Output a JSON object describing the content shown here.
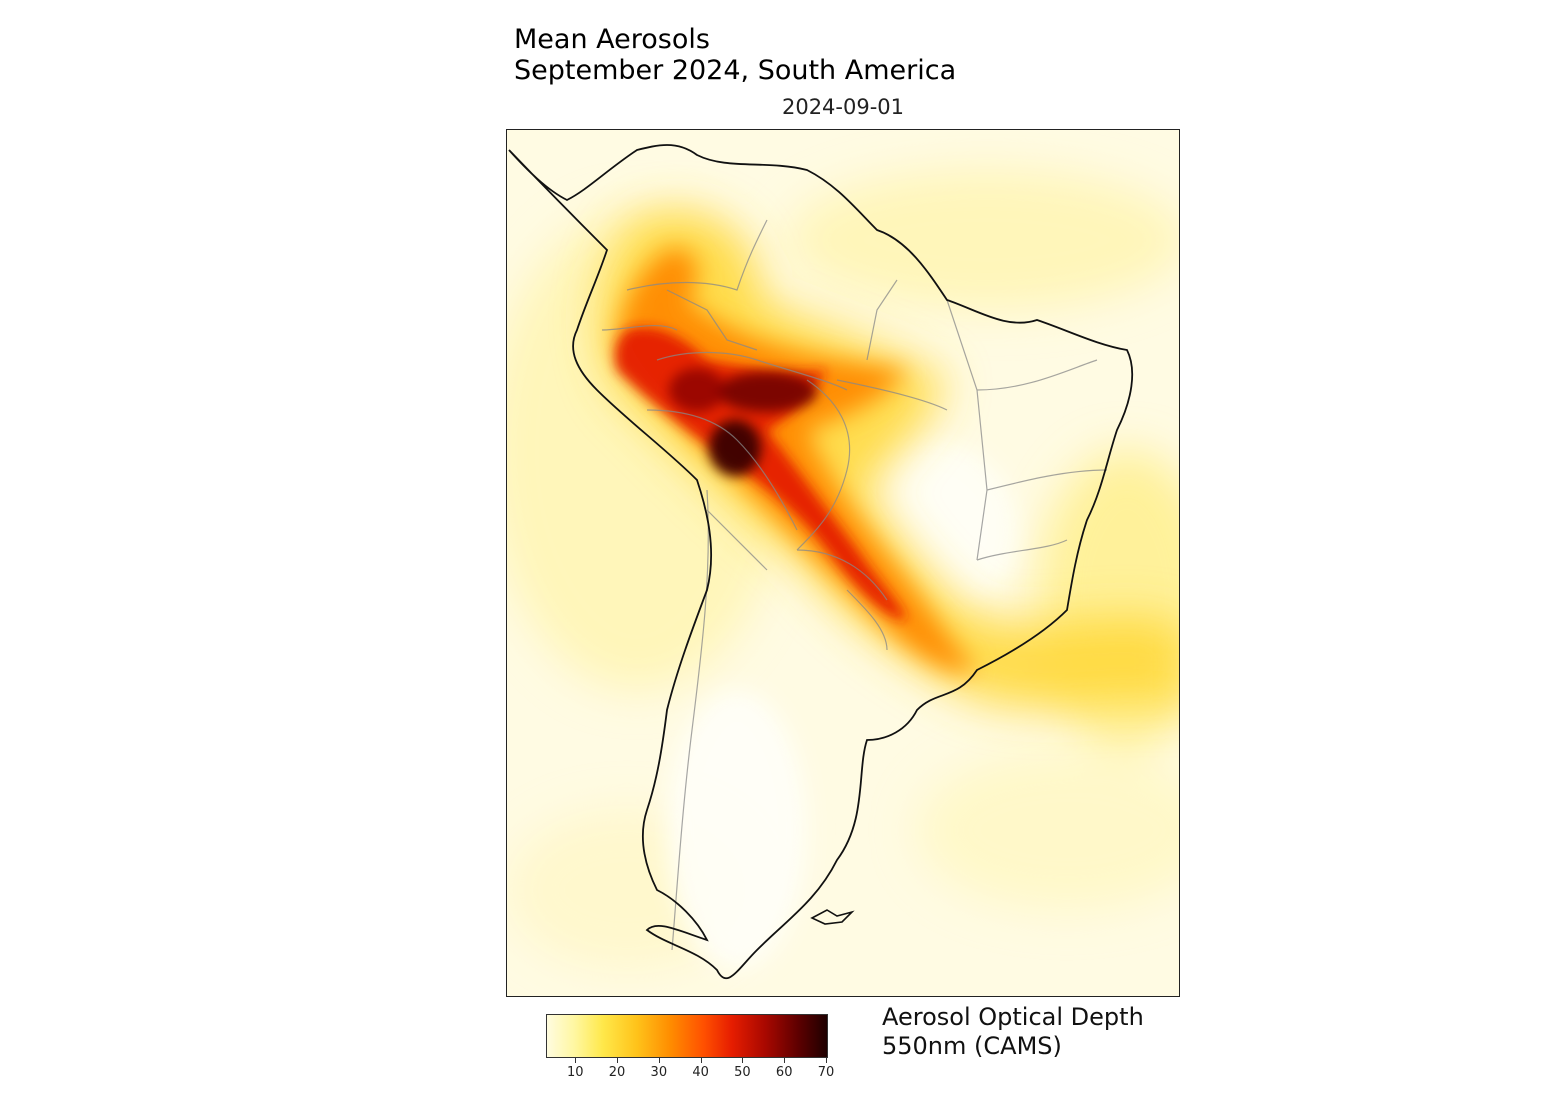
{
  "title": {
    "line1": "Mean Aerosols",
    "line2": "September 2024, South America"
  },
  "date": "2024-09-01",
  "map": {
    "region": "South America",
    "variable": "Aerosol Optical Depth 550nm",
    "plume_colors": {
      "background": "#fffbe3",
      "low": "#fff7a0",
      "mid": "#ffc31a",
      "high": "#ff5000",
      "peak": "#3a0000"
    }
  },
  "colorbar": {
    "label_line1": "Aerosol Optical Depth",
    "label_line2": "550nm (CAMS)",
    "ticks": [
      "10",
      "20",
      "30",
      "40",
      "50",
      "60",
      "70"
    ],
    "min": 3,
    "max": 70
  }
}
